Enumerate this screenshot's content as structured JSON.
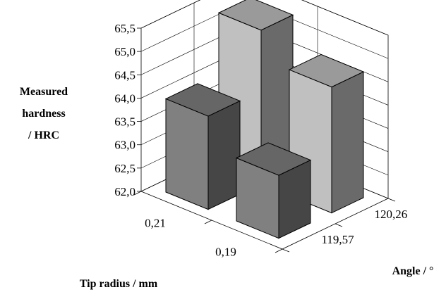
{
  "chart_data": {
    "type": "bar",
    "variant": "3d-grid",
    "title": "",
    "ylabel_lines": [
      "Measured",
      "hardness",
      "/ HRC"
    ],
    "xlabel": "Tip radius / mm",
    "zlabel": "Angle / °",
    "ylim": [
      62.0,
      65.5
    ],
    "yticks": [
      "62,0",
      "62,5",
      "63,0",
      "63,5",
      "64,0",
      "64,5",
      "65,0",
      "65,5"
    ],
    "x_categories": [
      "0,21",
      "0,19"
    ],
    "z_categories": [
      "119,57",
      "120,26"
    ],
    "grid": true,
    "bars": [
      {
        "tip_radius": "0,21",
        "angle": "120,26",
        "value": 65.3,
        "color": "#c0c0c0"
      },
      {
        "tip_radius": "0,19",
        "angle": "120,26",
        "value": 64.7,
        "color": "#c0c0c0"
      },
      {
        "tip_radius": "0,21",
        "angle": "119,57",
        "value": 64.0,
        "color": "#808080"
      },
      {
        "tip_radius": "0,19",
        "angle": "119,57",
        "value": 63.35,
        "color": "#808080"
      }
    ]
  }
}
